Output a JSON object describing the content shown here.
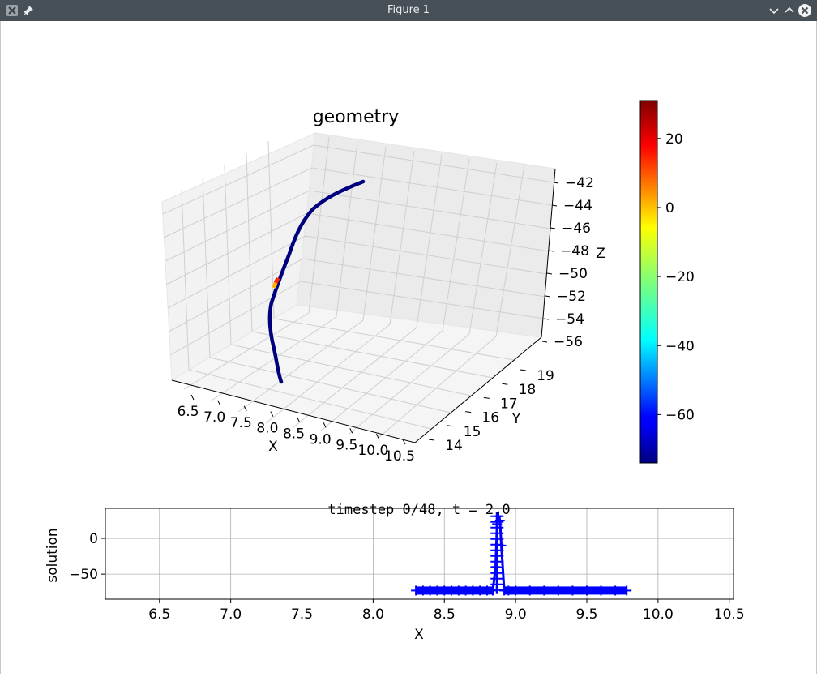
{
  "window": {
    "title": "Figure 1",
    "app_icon": "x11-icon",
    "pin_icon": "pin-icon",
    "minimize_icon": "chevron-down-icon",
    "maximize_icon": "chevron-up-icon",
    "close_icon": "close-icon"
  },
  "plot3d": {
    "title": "geometry",
    "x_label": "X",
    "y_label": "Y",
    "z_label": "Z",
    "x_ticks": [
      "6.5",
      "7.0",
      "7.5",
      "8.0",
      "8.5",
      "9.0",
      "9.5",
      "10.0",
      "10.5"
    ],
    "y_ticks": [
      "14",
      "15",
      "16",
      "17",
      "18",
      "19"
    ],
    "z_ticks": [
      "−42",
      "−44",
      "−46",
      "−48",
      "−50",
      "−52",
      "−54",
      "−56"
    ],
    "curve_color": "#00007f",
    "highlight_colors": [
      "#ff2a00",
      "#ffb100"
    ]
  },
  "colorbar": {
    "ticks": [
      "20",
      "0",
      "−20",
      "−40",
      "−60"
    ],
    "range": [
      -74,
      31
    ],
    "colormap": "jet"
  },
  "plot2d": {
    "title": "timestep 0/48, t = 2.0",
    "x_label": "X",
    "y_label": "solution",
    "x_ticks": [
      "6.5",
      "7.0",
      "7.5",
      "8.0",
      "8.5",
      "9.0",
      "9.5",
      "10.0",
      "10.5"
    ],
    "y_ticks": [
      "0",
      "−50"
    ],
    "marker_color": "#0000ff"
  },
  "chart_data": {
    "type": "line",
    "title": "timestep 0/48, t = 2.0",
    "xlabel": "X",
    "ylabel": "solution",
    "xlim": [
      6.12,
      10.53
    ],
    "ylim": [
      -85,
      42
    ],
    "grid": true,
    "series": [
      {
        "marker": "+",
        "color": "#0000ff",
        "x": [
          8.3,
          8.35,
          8.4,
          8.45,
          8.5,
          8.55,
          8.6,
          8.65,
          8.7,
          8.75,
          8.8,
          8.84,
          8.86,
          8.87,
          8.88,
          8.89,
          8.9,
          8.92,
          8.95,
          9.0,
          9.1,
          9.2,
          9.3,
          9.4,
          9.5,
          9.6,
          9.7,
          9.78
        ],
        "values": [
          -73,
          -73,
          -73,
          -73,
          -73,
          -73,
          -73,
          -73,
          -73,
          -73,
          -73,
          -73,
          -40,
          20,
          31,
          25,
          -10,
          -73,
          -73,
          -73,
          -73,
          -73,
          -73,
          -73,
          -73,
          -73,
          -73,
          -73
        ]
      }
    ]
  }
}
